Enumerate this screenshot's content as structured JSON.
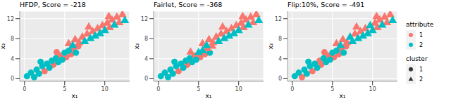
{
  "chart_data": [
    {
      "type": "scatter",
      "title": "HFDP, Score = -218",
      "x_label": "x₁",
      "y_label": "x₂",
      "xlim": [
        -0.6,
        13.1
      ],
      "ylim": [
        -0.5,
        13.5
      ],
      "xticks": [
        0,
        5,
        10
      ],
      "yticks": [
        0,
        4,
        8,
        12
      ],
      "grid": true,
      "series": [
        {
          "attribute": "1",
          "cluster": "1",
          "color": "#F8766D",
          "marker": "circle",
          "x": [
            2.5,
            3.6,
            4.5,
            5.2,
            5.8,
            6.7,
            4.0,
            6.1
          ],
          "y": [
            1.5,
            2.8,
            4.6,
            4.3,
            4.9,
            6.5,
            5.3,
            6.0
          ]
        },
        {
          "attribute": "2",
          "cluster": "1",
          "color": "#00BFC4",
          "marker": "circle",
          "x": [
            0.3,
            0.8,
            1.2,
            1.5,
            1.8,
            2.2,
            2.8,
            3.1,
            3.4,
            3.9,
            4.2,
            4.7,
            5.0,
            5.5,
            6.4,
            2.0
          ],
          "y": [
            0.5,
            1.2,
            0.3,
            1.8,
            1.0,
            2.5,
            3.0,
            2.2,
            3.6,
            4.1,
            3.3,
            3.8,
            5.2,
            5.6,
            5.2,
            3.4
          ]
        },
        {
          "attribute": "1",
          "cluster": "2",
          "color": "#F8766D",
          "marker": "triangle",
          "x": [
            5.5,
            6.3,
            6.8,
            7.2,
            7.8,
            8.5,
            9.1,
            9.7,
            10.3,
            10.6,
            10.9,
            11.5,
            11.8,
            12.2,
            8.0,
            10.5
          ],
          "y": [
            7.0,
            7.8,
            7.2,
            8.3,
            8.9,
            9.4,
            10.0,
            10.6,
            11.1,
            10.2,
            11.7,
            12.3,
            11.2,
            12.8,
            10.3,
            12.4
          ]
        },
        {
          "attribute": "2",
          "cluster": "2",
          "color": "#00BFC4",
          "marker": "triangle",
          "x": [
            6.0,
            7.5,
            8.8,
            10.0,
            11.2,
            12.5,
            8.2,
            9.4
          ],
          "y": [
            6.6,
            7.4,
            8.5,
            9.6,
            10.7,
            11.6,
            8.0,
            9.0
          ]
        }
      ]
    },
    {
      "type": "scatter",
      "title": "Fairlet, Score = -368",
      "x_label": "x₁",
      "y_label": "x₂",
      "xlim": [
        -0.6,
        13.1
      ],
      "ylim": [
        -0.5,
        13.5
      ],
      "xticks": [
        0,
        5,
        10
      ],
      "yticks": [
        0,
        4,
        8,
        12
      ],
      "grid": true,
      "series": [
        {
          "attribute": "1",
          "cluster": "1",
          "color": "#F8766D",
          "marker": "circle",
          "x": [
            2.5,
            3.6,
            4.5,
            5.2,
            5.8
          ],
          "y": [
            1.5,
            2.8,
            4.6,
            4.3,
            4.9
          ]
        },
        {
          "attribute": "2",
          "cluster": "1",
          "color": "#00BFC4",
          "marker": "circle",
          "x": [
            0.3,
            0.8,
            1.2,
            1.5,
            1.8,
            2.2,
            2.8,
            3.1,
            3.4,
            3.9,
            4.2,
            4.7,
            6.4,
            2.0
          ],
          "y": [
            0.5,
            1.2,
            0.3,
            1.8,
            1.0,
            2.5,
            3.0,
            2.2,
            3.6,
            4.1,
            3.3,
            3.8,
            5.2,
            3.4
          ]
        },
        {
          "attribute": "1",
          "cluster": "2",
          "color": "#F8766D",
          "marker": "triangle",
          "x": [
            5.5,
            6.3,
            6.8,
            7.2,
            7.8,
            8.5,
            9.1,
            9.7,
            10.3,
            10.6,
            10.9,
            11.5,
            11.8,
            12.2,
            8.0,
            10.5,
            6.1,
            6.7,
            4.0
          ],
          "y": [
            7.0,
            7.8,
            7.2,
            8.3,
            8.9,
            9.4,
            10.0,
            10.6,
            11.1,
            10.2,
            11.7,
            12.3,
            11.2,
            12.8,
            10.3,
            12.4,
            6.0,
            6.5,
            5.3
          ]
        },
        {
          "attribute": "2",
          "cluster": "2",
          "color": "#00BFC4",
          "marker": "triangle",
          "x": [
            6.0,
            7.5,
            8.8,
            10.0,
            11.2,
            12.5,
            8.2,
            9.4,
            5.0,
            5.5
          ],
          "y": [
            6.6,
            7.4,
            8.5,
            9.6,
            10.7,
            11.6,
            8.0,
            9.0,
            5.2,
            5.6
          ]
        }
      ]
    },
    {
      "type": "scatter",
      "title": "Flip:10%, Score = -491",
      "x_label": "x₁",
      "y_label": "x₂",
      "xlim": [
        -0.6,
        13.1
      ],
      "ylim": [
        -0.5,
        13.5
      ],
      "xticks": [
        0,
        5,
        10
      ],
      "yticks": [
        0,
        4,
        8,
        12
      ],
      "grid": true,
      "series": [
        {
          "attribute": "1",
          "cluster": "1",
          "color": "#F8766D",
          "marker": "circle",
          "x": [
            2.5,
            3.6,
            4.5,
            5.2,
            5.8,
            6.7,
            4.0,
            6.1,
            1.2,
            3.4
          ],
          "y": [
            1.5,
            2.8,
            4.6,
            4.3,
            4.9,
            6.5,
            5.3,
            6.0,
            0.3,
            3.6
          ]
        },
        {
          "attribute": "2",
          "cluster": "1",
          "color": "#00BFC4",
          "marker": "circle",
          "x": [
            0.3,
            0.8,
            1.5,
            1.8,
            2.2,
            2.8,
            3.1,
            3.9,
            4.2,
            4.7,
            5.0,
            5.5,
            6.4,
            2.0
          ],
          "y": [
            0.5,
            1.2,
            1.8,
            1.0,
            2.5,
            3.0,
            2.2,
            4.1,
            3.3,
            3.8,
            5.2,
            5.6,
            5.2,
            3.4
          ]
        },
        {
          "attribute": "1",
          "cluster": "2",
          "color": "#F8766D",
          "marker": "triangle",
          "x": [
            5.5,
            6.3,
            6.8,
            7.8,
            8.5,
            9.1,
            10.3,
            10.6,
            10.9,
            11.5,
            11.8,
            12.2,
            8.0,
            10.5
          ],
          "y": [
            7.0,
            7.8,
            7.2,
            8.9,
            9.4,
            10.0,
            11.1,
            10.2,
            11.7,
            12.3,
            11.2,
            12.8,
            10.3,
            12.4
          ]
        },
        {
          "attribute": "2",
          "cluster": "2",
          "color": "#00BFC4",
          "marker": "triangle",
          "x": [
            6.0,
            7.5,
            8.8,
            10.0,
            11.2,
            12.5,
            8.2,
            9.4,
            9.7,
            7.2
          ],
          "y": [
            6.6,
            7.4,
            8.5,
            9.6,
            10.7,
            11.6,
            8.0,
            9.0,
            10.6,
            8.3
          ]
        }
      ]
    }
  ],
  "legend_groups": [
    {
      "title": "attribute",
      "entries": [
        {
          "label": "1",
          "color": "#F8766D",
          "marker": "circle"
        },
        {
          "label": "2",
          "color": "#00BFC4",
          "marker": "circle"
        }
      ]
    },
    {
      "title": "cluster",
      "entries": [
        {
          "label": "1",
          "color": "#333333",
          "marker": "circle"
        },
        {
          "label": "2",
          "color": "#333333",
          "marker": "triangle"
        }
      ]
    }
  ]
}
